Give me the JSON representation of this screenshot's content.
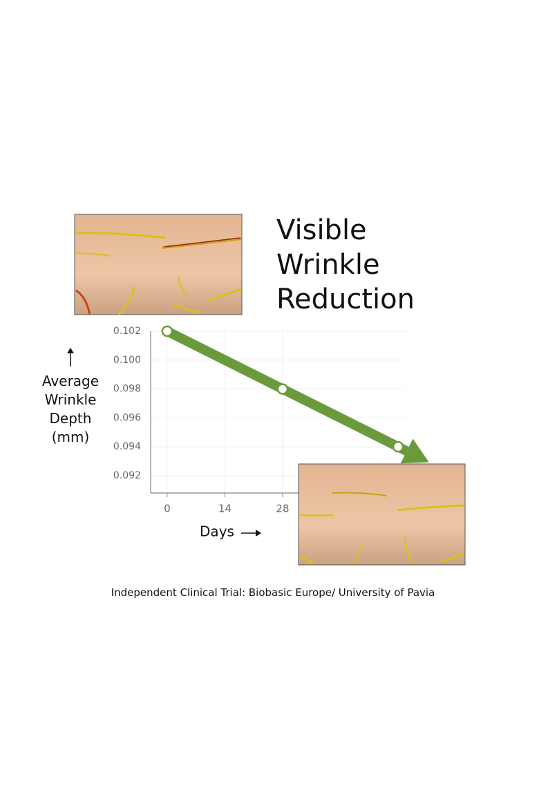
{
  "chart_data": {
    "type": "line",
    "title": "Visible Wrinkle Reduction",
    "y_label": "Average Wrinkle Depth (mm)",
    "x_label": "Days",
    "caption": "Independent Clinical Trial: Biobasic Europe/ University of Pavia",
    "x": [
      0,
      28,
      56
    ],
    "series": [
      {
        "color": "#6a9a3c",
        "values": [
          0.102,
          0.098,
          0.094
        ]
      }
    ],
    "xlim": [
      -4,
      58
    ],
    "xticks": [
      0,
      14,
      28
    ],
    "ylim": [
      0.0908,
      0.102
    ],
    "yticks": [
      0.092,
      0.094,
      0.096,
      0.098,
      {
        "value": 0.1,
        "label": "0.100"
      },
      0.102
    ],
    "grid": true
  }
}
